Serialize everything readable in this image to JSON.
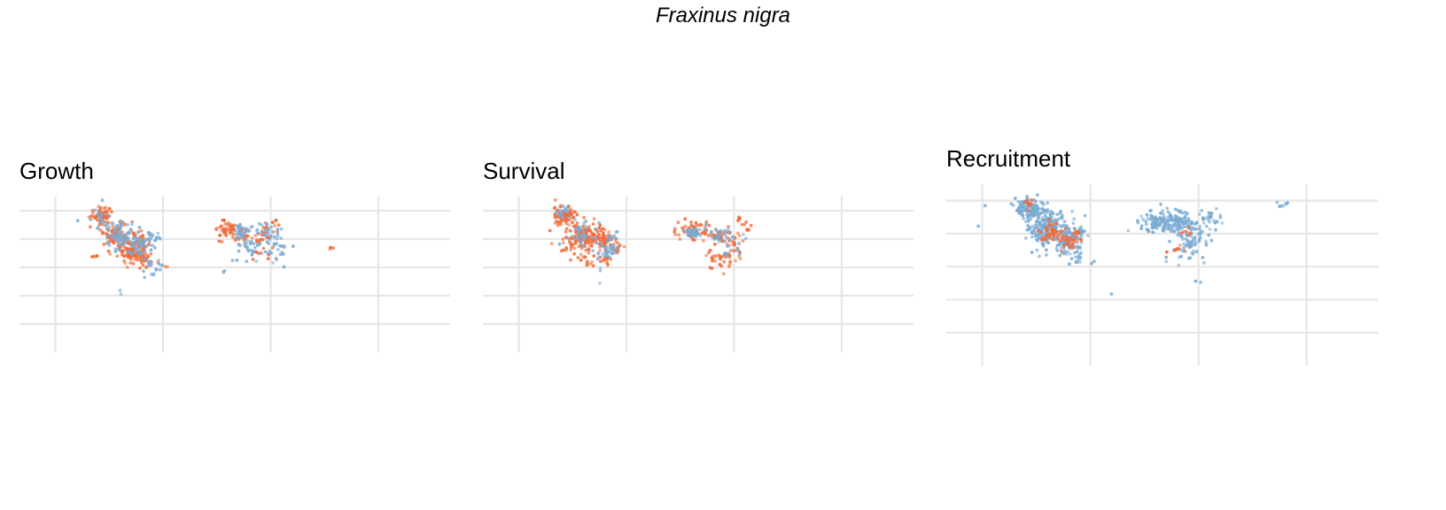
{
  "title": "Fraxinus nigra",
  "colors": {
    "high": "#f26b3a",
    "low": "#7aabd3",
    "grid": "#e6e6e6"
  },
  "chart_data": [
    {
      "type": "scatter",
      "title": "Growth",
      "xlabel": "",
      "ylabel": "",
      "grid": true,
      "legend": "none",
      "series": [
        {
          "color": "#f26b3a",
          "clusters": [
            [
              -112,
              62,
              8,
              5,
              55
            ],
            [
              -100,
              48,
              10,
              8,
              90
            ],
            [
              -78,
              44,
              5,
              5,
              30
            ],
            [
              -88,
              39,
              8,
              5,
              45
            ],
            [
              -88,
              33,
              8,
              5,
              50
            ],
            [
              -76,
              30,
              6,
              6,
              25
            ],
            [
              -8,
              52,
              8,
              5,
              45
            ],
            [
              6,
              48,
              6,
              5,
              25
            ],
            [
              22,
              42,
              10,
              10,
              30
            ],
            [
              34,
              55,
              6,
              4,
              10
            ],
            [
              -118,
              34,
              3,
              3,
              4
            ],
            [
              -58,
              25,
              2,
              2,
              2
            ],
            [
              80,
              40,
              3,
              3,
              3
            ]
          ]
        },
        {
          "color": "#7aabd3",
          "clusters": [
            [
              -112,
              61,
              8,
              6,
              20
            ],
            [
              -98,
              47,
              12,
              9,
              70
            ],
            [
              -80,
              40,
              8,
              7,
              40
            ],
            [
              -70,
              46,
              6,
              5,
              20
            ],
            [
              -72,
              28,
              5,
              5,
              15
            ],
            [
              6,
              49,
              8,
              5,
              35
            ],
            [
              12,
              38,
              8,
              8,
              20
            ],
            [
              28,
              48,
              10,
              8,
              35
            ],
            [
              36,
              35,
              10,
              8,
              20
            ],
            [
              -63,
              27,
              4,
              4,
              4
            ],
            [
              -95,
              10,
              2,
              2,
              2
            ],
            [
              -10,
              22,
              2,
              2,
              2
            ],
            [
              0,
              28,
              2,
              2,
              2
            ]
          ]
        }
      ]
    },
    {
      "type": "scatter",
      "title": "Survival",
      "xlabel": "",
      "ylabel": "",
      "grid": true,
      "legend": "none",
      "series": [
        {
          "color": "#f26b3a",
          "clusters": [
            [
              -112,
              62,
              8,
              5,
              75
            ],
            [
              -96,
              46,
              14,
              9,
              150
            ],
            [
              -78,
              44,
              5,
              5,
              35
            ],
            [
              -68,
              40,
              5,
              5,
              20
            ],
            [
              -76,
              30,
              4,
              4,
              15
            ],
            [
              -4,
              52,
              10,
              5,
              55
            ],
            [
              16,
              48,
              8,
              5,
              30
            ],
            [
              26,
              40,
              10,
              10,
              35
            ],
            [
              18,
              30,
              10,
              6,
              25
            ],
            [
              40,
              55,
              6,
              4,
              10
            ],
            [
              -110,
              36,
              4,
              3,
              5
            ],
            [
              -92,
              30,
              6,
              4,
              10
            ]
          ]
        },
        {
          "color": "#7aabd3",
          "clusters": [
            [
              -114,
              64,
              5,
              4,
              15
            ],
            [
              -98,
              47,
              10,
              8,
              40
            ],
            [
              -76,
              36,
              6,
              6,
              30
            ],
            [
              -70,
              46,
              4,
              4,
              10
            ],
            [
              -4,
              50,
              8,
              5,
              30
            ],
            [
              18,
              48,
              8,
              5,
              20
            ],
            [
              30,
              40,
              8,
              8,
              15
            ],
            [
              -80,
              25,
              2,
              2,
              2
            ],
            [
              -82,
              14,
              1,
              1,
              1
            ]
          ]
        }
      ]
    },
    {
      "type": "scatter",
      "title": "Recruitment",
      "xlabel": "",
      "ylabel": "",
      "grid": true,
      "legend": "none",
      "series": [
        {
          "color": "#7aabd3",
          "clusters": [
            [
              -110,
              60,
              10,
              5,
              130
            ],
            [
              -96,
              48,
              14,
              10,
              200
            ],
            [
              -78,
              40,
              7,
              8,
              90
            ],
            [
              -68,
              46,
              5,
              5,
              25
            ],
            [
              -70,
              30,
              4,
              4,
              10
            ],
            [
              -4,
              52,
              12,
              5,
              90
            ],
            [
              12,
              52,
              10,
              6,
              90
            ],
            [
              28,
              44,
              10,
              9,
              60
            ],
            [
              38,
              55,
              8,
              5,
              25
            ],
            [
              20,
              36,
              8,
              8,
              20
            ],
            [
              -148,
              62,
              1,
              1,
              1
            ],
            [
              -154,
              49,
              1,
              1,
              1
            ],
            [
              -42,
              9,
              1,
              1,
              1
            ],
            [
              -58,
              28,
              2,
              2,
              2
            ],
            [
              2,
              30,
              2,
              2,
              2
            ],
            [
              30,
              16,
              2,
              2,
              2
            ],
            [
              100,
              62,
              4,
              2,
              8
            ]
          ]
        },
        {
          "color": "#f26b3a",
          "clusters": [
            [
              -112,
              64,
              4,
              4,
              8
            ],
            [
              -92,
              46,
              8,
              5,
              40
            ],
            [
              -78,
              40,
              6,
              5,
              25
            ],
            [
              -72,
              44,
              4,
              4,
              8
            ],
            [
              10,
              38,
              6,
              4,
              8
            ],
            [
              20,
              46,
              6,
              4,
              6
            ]
          ]
        }
      ]
    }
  ]
}
